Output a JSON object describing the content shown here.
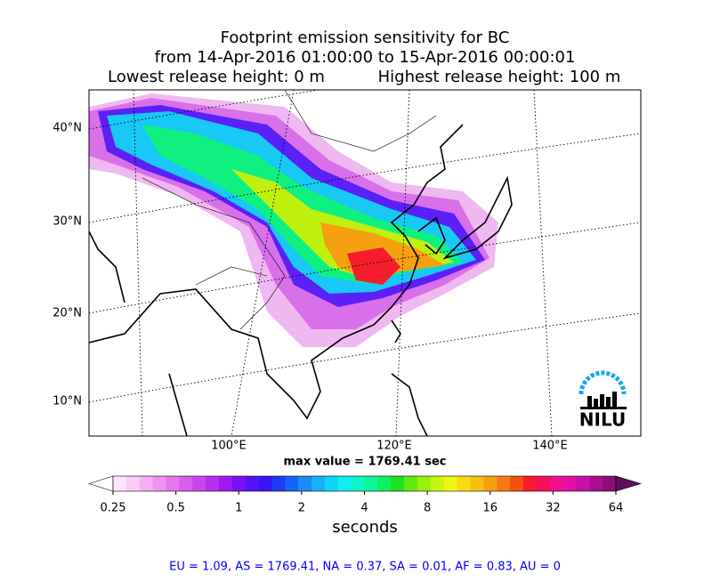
{
  "header": {
    "title": "Footprint emission sensitivity for BC",
    "period": "from 14-Apr-2016 01:00:00 to 15-Apr-2016 00:00:01",
    "lowest": "Lowest release height: 0 m",
    "highest": "Highest release height: 100 m"
  },
  "map": {
    "lat_labels": [
      "40°N",
      "30°N",
      "20°N",
      "10°N"
    ],
    "lon_labels": [
      "100°E",
      "120°E",
      "140°E"
    ],
    "max_value": "max value = 1769.41 sec",
    "logo": "NILU"
  },
  "colorbar": {
    "ticks": [
      0.25,
      0.5,
      1,
      2,
      4,
      8,
      16,
      32,
      64
    ],
    "label": "seconds",
    "colors": [
      "#ffffff",
      "#fde6fc",
      "#f9ccf8",
      "#f3b0f3",
      "#ec94ee",
      "#e478ea",
      "#d95ee8",
      "#c945ea",
      "#b52ff0",
      "#9c1bf5",
      "#7a10f8",
      "#5810f8",
      "#3a14f5",
      "#1e3cf5",
      "#1464f8",
      "#1a8cf8",
      "#18b0f8",
      "#12d2f5",
      "#10eef0",
      "#10f5c8",
      "#10f598",
      "#10f060",
      "#20e020",
      "#60ea10",
      "#96f010",
      "#c8f510",
      "#f0f510",
      "#f5dc10",
      "#f5c010",
      "#f5a010",
      "#f57a10",
      "#f55010",
      "#f51c2c",
      "#f5105a",
      "#f0108a",
      "#e010a8",
      "#c810a8",
      "#a81090",
      "#881078",
      "#60105a"
    ]
  },
  "footer": "EU = 1.09,  AS = 1769.41,  NA = 0.37,  SA = 0.01,  AF = 0.83,  AU = 0"
}
